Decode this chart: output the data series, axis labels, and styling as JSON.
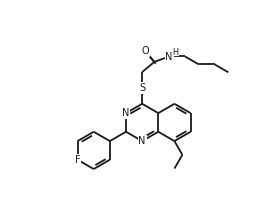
{
  "bg": "#ffffff",
  "lc": "#1a1a1a",
  "lw": 1.3,
  "fs": 7.0
}
